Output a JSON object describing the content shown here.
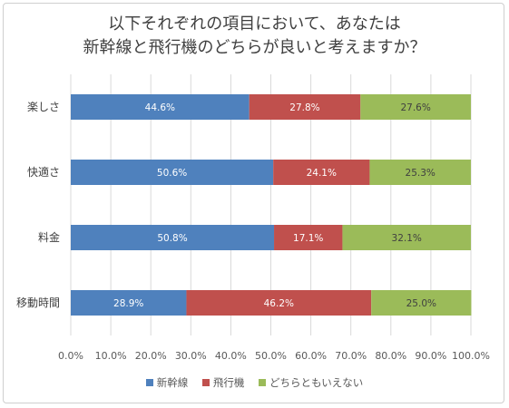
{
  "chart_data": {
    "type": "bar",
    "orientation": "horizontal",
    "stacked": true,
    "title_lines": [
      "以下それぞれの項目において、あなたは",
      "新幹線と飛行機のどちらが良いと考えますか？"
    ],
    "categories": [
      "楽しさ",
      "快適さ",
      "料金",
      "移動時間"
    ],
    "series": [
      {
        "name": "新幹線",
        "color": "#4f81bd",
        "label_color": "#ffffff",
        "values": [
          44.6,
          50.6,
          50.8,
          28.9
        ]
      },
      {
        "name": "飛行機",
        "color": "#c0504d",
        "label_color": "#ffffff",
        "values": [
          27.8,
          24.1,
          17.1,
          46.2
        ]
      },
      {
        "name": "どちらともいえない",
        "color": "#9bbb59",
        "label_color": "#404040",
        "values": [
          27.6,
          25.3,
          32.1,
          25.0
        ]
      }
    ],
    "data_labels": [
      [
        "44.6%",
        "27.8%",
        "27.6%"
      ],
      [
        "50.6%",
        "24.1%",
        "25.3%"
      ],
      [
        "50.8%",
        "17.1%",
        "32.1%"
      ],
      [
        "28.9%",
        "46.2%",
        "25.0%"
      ]
    ],
    "x_ticks": [
      "0.0%",
      "10.0%",
      "20.0%",
      "30.0%",
      "40.0%",
      "50.0%",
      "60.0%",
      "70.0%",
      "80.0%",
      "90.0%",
      "100.0%"
    ],
    "xlim": [
      0,
      100
    ],
    "grid": "vertical",
    "legend_position": "bottom"
  }
}
